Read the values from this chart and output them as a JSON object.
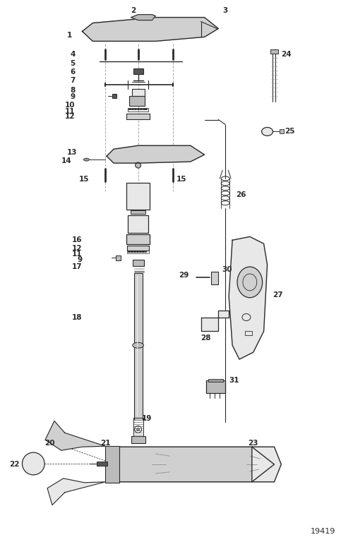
{
  "part_number": "19419",
  "bg": "#ffffff",
  "lc": "#2a2a2a",
  "gray1": "#e8e8e8",
  "gray2": "#d0d0d0",
  "gray3": "#bbbbbb",
  "gray4": "#999999",
  "gray_dark": "#555555"
}
